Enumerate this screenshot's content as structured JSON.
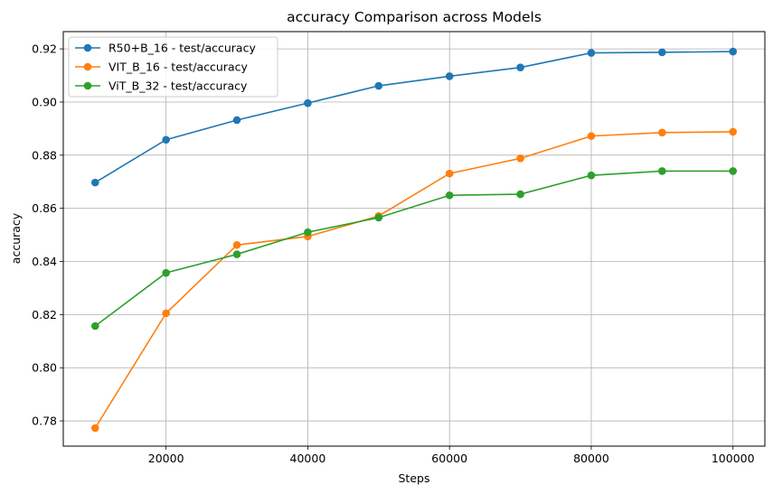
{
  "chart_data": {
    "type": "line",
    "title": "accuracy Comparison across Models",
    "xlabel": "Steps",
    "ylabel": "accuracy",
    "xlim": [
      5500,
      104500
    ],
    "ylim": [
      0.7705,
      0.9265
    ],
    "xticks": [
      20000,
      40000,
      60000,
      80000,
      100000
    ],
    "xtick_labels": [
      "20000",
      "40000",
      "60000",
      "80000",
      "100000"
    ],
    "yticks": [
      0.78,
      0.8,
      0.82,
      0.84,
      0.86,
      0.88,
      0.9,
      0.92
    ],
    "ytick_labels": [
      "0.78",
      "0.80",
      "0.82",
      "0.84",
      "0.86",
      "0.88",
      "0.90",
      "0.92"
    ],
    "grid": true,
    "legend_position": "top-left",
    "x": [
      10000,
      20000,
      30000,
      40000,
      50000,
      60000,
      70000,
      80000,
      90000,
      100000
    ],
    "series": [
      {
        "name": "R50+B_16 - test/accuracy",
        "color": "#1f77b4",
        "values": [
          0.8697,
          0.8858,
          0.8932,
          0.8996,
          0.9061,
          0.9097,
          0.913,
          0.9185,
          0.9187,
          0.919
        ]
      },
      {
        "name": "VIT_B_16 - test/accuracy",
        "color": "#ff7f0e",
        "values": [
          0.7773,
          0.8205,
          0.8462,
          0.8494,
          0.8571,
          0.8731,
          0.8788,
          0.8872,
          0.8885,
          0.8888
        ]
      },
      {
        "name": "ViT_B_32 - test/accuracy",
        "color": "#2ca02c",
        "values": [
          0.8157,
          0.8357,
          0.8427,
          0.851,
          0.8565,
          0.8649,
          0.8653,
          0.8724,
          0.874,
          0.874
        ]
      }
    ]
  }
}
